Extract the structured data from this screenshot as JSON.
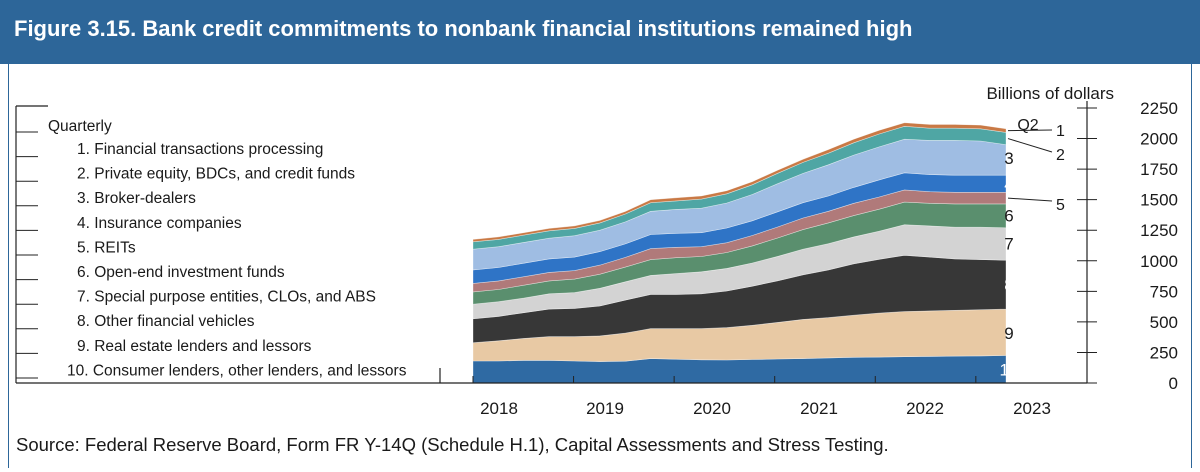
{
  "figure": {
    "title": "Figure 3.15. Bank credit commitments to nonbank financial institutions remained high",
    "source": "Source: Federal Reserve Board, Form FR Y-14Q (Schedule H.1), Capital Assessments and Stress Testing."
  },
  "colors": {
    "header": "#2d6699",
    "series": [
      "#2f6aa3",
      "#e8c9a4",
      "#373737",
      "#d3d3d3",
      "#5a8f6e",
      "#b07a7a",
      "#2f74c6",
      "#9fbde3",
      "#4fa6a4",
      "#c97945"
    ]
  },
  "chart_data": {
    "type": "area",
    "stacked": true,
    "frequency_label": "Quarterly",
    "y_unit_label": "Billions of dollars",
    "ylim": [
      0,
      2250
    ],
    "yticks": [
      0,
      250,
      500,
      750,
      1000,
      1250,
      1500,
      1750,
      2000,
      2250
    ],
    "x_tick_labels": [
      "2018",
      "2019",
      "2020",
      "2021",
      "2022",
      "2023"
    ],
    "end_label": "Q2",
    "x": [
      "2018:Q1",
      "2018:Q2",
      "2018:Q3",
      "2018:Q4",
      "2019:Q1",
      "2019:Q2",
      "2019:Q3",
      "2019:Q4",
      "2020:Q1",
      "2020:Q2",
      "2020:Q3",
      "2020:Q4",
      "2021:Q1",
      "2021:Q2",
      "2021:Q3",
      "2021:Q4",
      "2022:Q1",
      "2022:Q2",
      "2022:Q3",
      "2022:Q4",
      "2023:Q1",
      "2023:Q2"
    ],
    "series": [
      {
        "name": "10. Consumer lenders, other lenders, and lessors",
        "label": "10",
        "values": [
          180,
          180,
          185,
          185,
          180,
          175,
          178,
          200,
          195,
          190,
          188,
          192,
          196,
          200,
          205,
          210,
          212,
          215,
          218,
          220,
          222,
          225
        ]
      },
      {
        "name": "9. Real estate lenders and lessors",
        "label": "9",
        "values": [
          150,
          165,
          180,
          195,
          200,
          210,
          230,
          245,
          250,
          255,
          265,
          280,
          300,
          320,
          330,
          345,
          360,
          370,
          372,
          375,
          378,
          380
        ]
      },
      {
        "name": "8. Other financial vehicles",
        "label": "8",
        "values": [
          195,
          200,
          210,
          225,
          230,
          245,
          270,
          280,
          280,
          285,
          300,
          320,
          340,
          365,
          390,
          420,
          440,
          460,
          440,
          420,
          410,
          400
        ]
      },
      {
        "name": "7. Special purpose entities, CLOs, and ABS",
        "label": "7",
        "values": [
          120,
          120,
          120,
          125,
          130,
          145,
          150,
          155,
          170,
          180,
          185,
          190,
          200,
          210,
          215,
          220,
          230,
          250,
          255,
          260,
          265,
          265
        ]
      },
      {
        "name": "6. Open-end investment funds",
        "label": "6",
        "values": [
          100,
          100,
          105,
          105,
          110,
          115,
          120,
          130,
          130,
          125,
          130,
          140,
          150,
          160,
          170,
          175,
          180,
          185,
          185,
          190,
          190,
          195
        ]
      },
      {
        "name": "5. REITs",
        "label": "5",
        "values": [
          70,
          70,
          70,
          70,
          70,
          75,
          80,
          90,
          85,
          80,
          80,
          85,
          90,
          95,
          95,
          100,
          100,
          100,
          95,
          95,
          95,
          95
        ]
      },
      {
        "name": "4. Insurance companies",
        "label": "4",
        "values": [
          110,
          110,
          110,
          110,
          110,
          110,
          110,
          115,
          115,
          115,
          120,
          120,
          125,
          125,
          125,
          130,
          140,
          140,
          140,
          140,
          140,
          140
        ]
      },
      {
        "name": "3. Broker-dealers",
        "label": "3",
        "values": [
          170,
          170,
          170,
          170,
          175,
          175,
          180,
          190,
          195,
          200,
          205,
          215,
          230,
          240,
          255,
          265,
          270,
          275,
          280,
          285,
          280,
          250
        ]
      },
      {
        "name": "2. Private equity, BDCs, and credit funds",
        "label": "2",
        "values": [
          60,
          60,
          60,
          60,
          60,
          60,
          65,
          70,
          70,
          75,
          75,
          80,
          85,
          90,
          95,
          100,
          105,
          105,
          100,
          100,
          100,
          100
        ]
      },
      {
        "name": "1. Financial transactions processing",
        "label": "1",
        "values": [
          20,
          20,
          20,
          20,
          20,
          20,
          20,
          25,
          25,
          25,
          25,
          25,
          25,
          25,
          30,
          30,
          30,
          30,
          30,
          30,
          30,
          30
        ]
      }
    ]
  }
}
